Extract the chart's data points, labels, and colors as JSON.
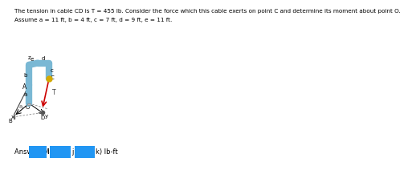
{
  "title_line1": "The tension in cable CD is T = 455 lb. Consider the force which this cable exerts on point C and determine its moment about point O.",
  "title_line2": "Assume a = 11 ft, b = 4 ft, c = 7 ft, d = 9 ft, e = 11 ft.",
  "answer_label": "Answer: Mₒ = (",
  "i_label": "i +",
  "j_label": "j +",
  "k_label": "k) lb-ft",
  "box_color": "#2196F3",
  "title_fontsize": 5.2,
  "answer_fontsize": 6.0,
  "bg_color": "#ffffff",
  "pipe_color": "#7ab8d4",
  "pipe_lw": 6,
  "ox": 0.155,
  "oy": 0.38,
  "diagram_scale": 1.0
}
